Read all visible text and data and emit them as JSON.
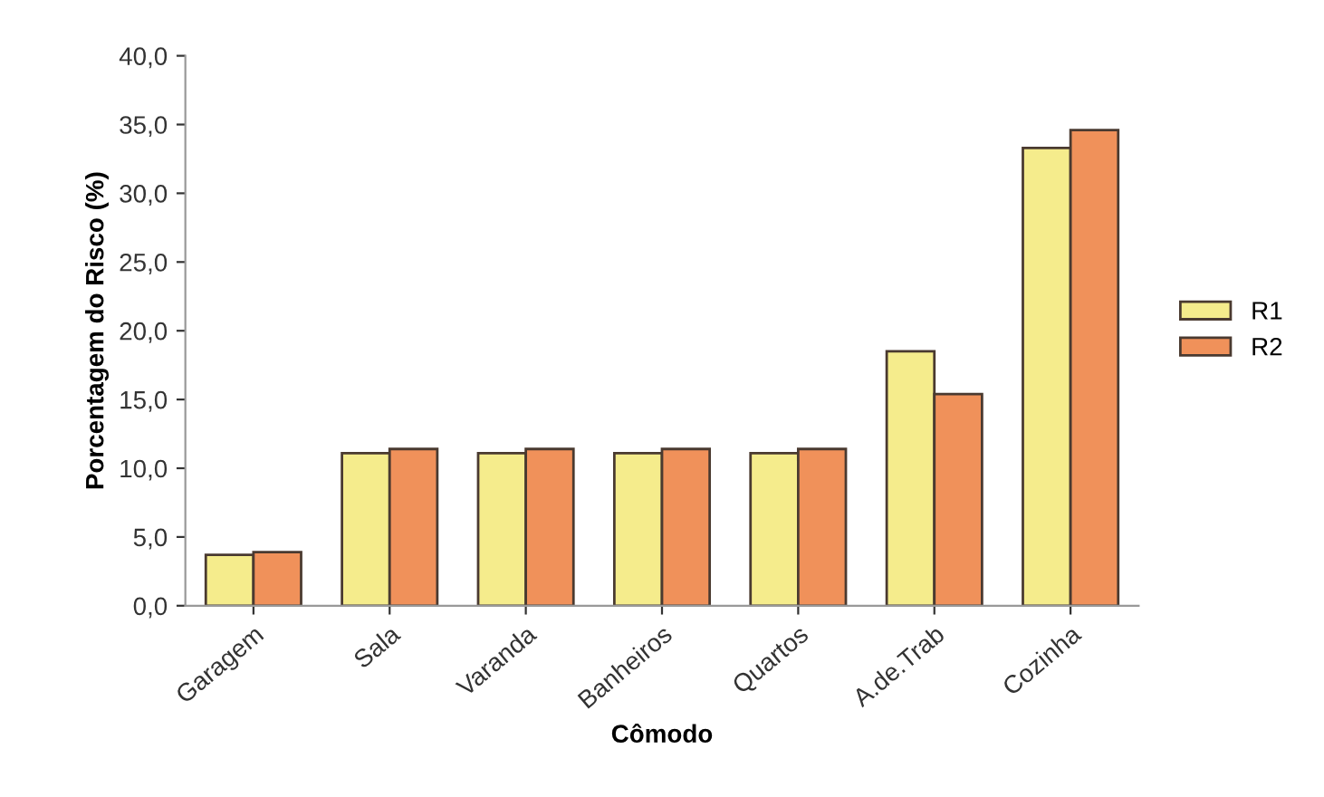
{
  "chart_data": {
    "type": "bar",
    "xlabel": "Cômodo",
    "ylabel": "Porcentagem do Risco (%)",
    "categories": [
      "Garagem",
      "Sala",
      "Varanda",
      "Banheiros",
      "Quartos",
      "A.de.Trab",
      "Cozinha"
    ],
    "series": [
      {
        "name": "R1",
        "color": "#f5ec8c",
        "values": [
          3.7,
          11.1,
          11.1,
          11.1,
          11.1,
          18.5,
          33.3
        ]
      },
      {
        "name": "R2",
        "color": "#f0915a",
        "values": [
          3.9,
          11.4,
          11.4,
          11.4,
          11.4,
          15.4,
          34.6
        ]
      }
    ],
    "ylim": [
      0,
      40
    ],
    "yticks": [
      {
        "value": 0,
        "label": "0,0"
      },
      {
        "value": 5,
        "label": "5,0"
      },
      {
        "value": 10,
        "label": "10,0"
      },
      {
        "value": 15,
        "label": "15,0"
      },
      {
        "value": 20,
        "label": "20,0"
      },
      {
        "value": 25,
        "label": "25,0"
      },
      {
        "value": 30,
        "label": "30,0"
      },
      {
        "value": 35,
        "label": "35,0"
      },
      {
        "value": 40,
        "label": "40,0"
      }
    ],
    "grid": false,
    "legend": "right"
  }
}
